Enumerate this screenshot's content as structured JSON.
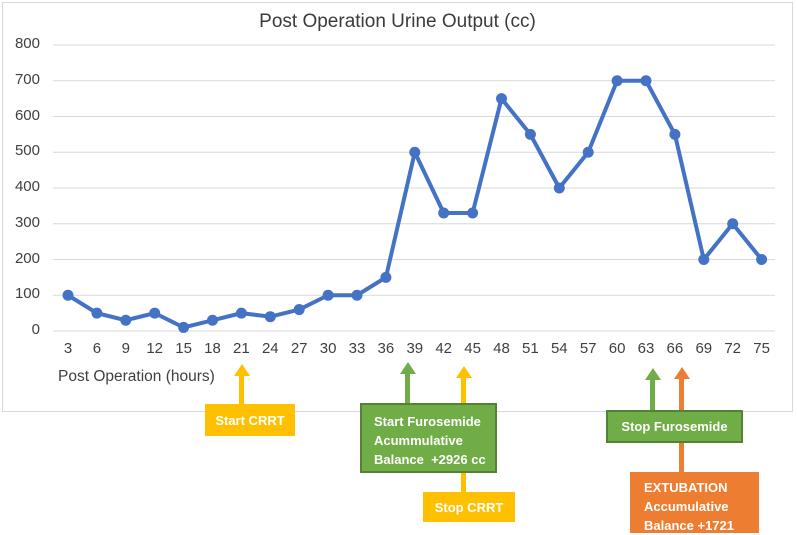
{
  "chart_data": {
    "type": "line",
    "title": "Post Operation Urine Output (cc)",
    "xlabel": "Post Operation (hours)",
    "ylabel": "",
    "x": [
      3,
      6,
      9,
      12,
      15,
      18,
      21,
      24,
      27,
      30,
      33,
      36,
      39,
      42,
      45,
      48,
      51,
      54,
      57,
      60,
      63,
      66,
      69,
      72,
      75
    ],
    "y": [
      100,
      50,
      30,
      50,
      10,
      30,
      50,
      40,
      60,
      100,
      100,
      150,
      500,
      330,
      330,
      650,
      550,
      400,
      500,
      700,
      700,
      550,
      200,
      300,
      200
    ],
    "ylim": [
      0,
      800
    ],
    "ytick_step": 100,
    "gridlines": true,
    "legend": "none",
    "line_color": "#4472C4",
    "marker": "circle"
  },
  "annotations": [
    {
      "id": "start-crrt",
      "lines": [
        "Start CRRT"
      ],
      "fill": "#FFC000",
      "arrow_hour": 21
    },
    {
      "id": "start-furosemide",
      "lines": [
        "Start Furosemide",
        "Acummulative",
        "Balance  +2926 cc"
      ],
      "fill": "#70AD47",
      "border": "#548235",
      "arrow_hour": 39
    },
    {
      "id": "stop-crrt",
      "lines": [
        "Stop CRRT"
      ],
      "fill": "#FFC000",
      "arrow_hour": 45
    },
    {
      "id": "stop-furosemide",
      "lines": [
        "Stop Furosemide"
      ],
      "fill": "#70AD47",
      "border": "#548235",
      "arrow_hour": 63
    },
    {
      "id": "extubation",
      "lines": [
        "EXTUBATION",
        "Accumulative",
        "Balance +1721"
      ],
      "fill": "#ED7D31",
      "arrow_hour": 66
    }
  ],
  "colors": {
    "line": "#4472C4",
    "gridline": "#D9D9D9",
    "frame_border": "#D9D9D9",
    "axis_text": "#404040",
    "title_text": "#3b3b3b",
    "yellow": "#FFC000",
    "green": "#70AD47",
    "green_border": "#548235",
    "orange": "#ED7D31",
    "annotation_text": "#FFFFFF"
  }
}
